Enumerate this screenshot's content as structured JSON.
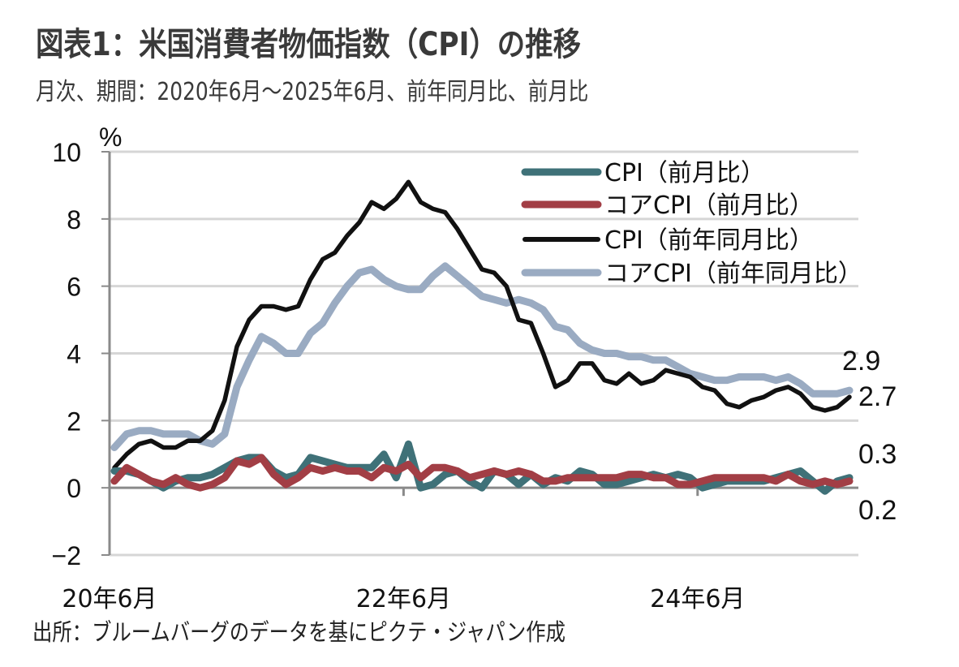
{
  "header": {
    "title": "図表1：米国消費者物価指数（CPI）の推移",
    "subtitle": "月次、期間：2020年6月～2025年6月、前年同月比、前月比"
  },
  "footer": {
    "source": "出所：ブルームバーグのデータを基にピクテ・ジャパン作成"
  },
  "chart_data": {
    "type": "line",
    "title": "図表1：米国消費者物価指数（CPI）の推移",
    "subtitle": "月次、期間：2020年6月～2025年6月、前年同月比、前月比",
    "xlabel": "",
    "ylabel": "%",
    "ylim": [
      -2,
      10
    ],
    "yticks": [
      -2,
      0,
      2,
      4,
      6,
      8,
      10
    ],
    "ytick_labels": [
      "−2",
      "0",
      "2",
      "4",
      "6",
      "8",
      "10"
    ],
    "xtick_labels": [
      {
        "index": 0,
        "label": "20年6月"
      },
      {
        "index": 24,
        "label": "22年6月"
      },
      {
        "index": 48,
        "label": "24年6月"
      }
    ],
    "x_start": "2020-06",
    "x_end": "2025-06",
    "frequency": "monthly",
    "grid": true,
    "legend": "top-right",
    "end_labels": [
      {
        "series": "コアCPI（前年同月比）",
        "label": "2.9"
      },
      {
        "series": "CPI（前年同月比）",
        "label": "2.7"
      },
      {
        "series": "CPI（前月比）",
        "label": "0.3"
      },
      {
        "series": "コアCPI（前月比）",
        "label": "0.2"
      }
    ],
    "series": [
      {
        "name": "CPI（前月比）",
        "color": "#3f7178",
        "values": [
          0.5,
          0.5,
          0.4,
          0.2,
          0.0,
          0.2,
          0.3,
          0.3,
          0.4,
          0.6,
          0.8,
          0.9,
          0.9,
          0.5,
          0.3,
          0.4,
          0.9,
          0.8,
          0.7,
          0.6,
          0.6,
          0.6,
          1.0,
          0.3,
          1.3,
          0.0,
          0.1,
          0.4,
          0.5,
          0.2,
          0.0,
          0.5,
          0.4,
          0.1,
          0.4,
          0.1,
          0.3,
          0.2,
          0.5,
          0.4,
          0.1,
          0.1,
          0.2,
          0.3,
          0.4,
          0.3,
          0.4,
          0.3,
          0.0,
          0.1,
          0.2,
          0.2,
          0.2,
          0.2,
          0.3,
          0.4,
          0.5,
          0.2,
          -0.1,
          0.2,
          0.3
        ]
      },
      {
        "name": "コアCPI（前月比）",
        "color": "#a23e45",
        "values": [
          0.2,
          0.6,
          0.4,
          0.2,
          0.1,
          0.3,
          0.1,
          0.0,
          0.1,
          0.3,
          0.8,
          0.7,
          0.9,
          0.4,
          0.1,
          0.3,
          0.6,
          0.5,
          0.6,
          0.5,
          0.5,
          0.3,
          0.6,
          0.5,
          0.7,
          0.3,
          0.6,
          0.6,
          0.5,
          0.3,
          0.4,
          0.5,
          0.4,
          0.5,
          0.4,
          0.2,
          0.2,
          0.3,
          0.3,
          0.3,
          0.3,
          0.3,
          0.4,
          0.4,
          0.3,
          0.3,
          0.1,
          0.1,
          0.2,
          0.3,
          0.3,
          0.3,
          0.3,
          0.3,
          0.2,
          0.4,
          0.2,
          0.1,
          0.2,
          0.1,
          0.2
        ]
      },
      {
        "name": "CPI（前年同月比）",
        "color": "#111111",
        "values": [
          0.6,
          1.0,
          1.3,
          1.4,
          1.2,
          1.2,
          1.4,
          1.4,
          1.7,
          2.6,
          4.2,
          5.0,
          5.4,
          5.4,
          5.3,
          5.4,
          6.2,
          6.8,
          7.0,
          7.5,
          7.9,
          8.5,
          8.3,
          8.6,
          9.1,
          8.5,
          8.3,
          8.2,
          7.7,
          7.1,
          6.5,
          6.4,
          6.0,
          5.0,
          4.9,
          4.0,
          3.0,
          3.2,
          3.7,
          3.7,
          3.2,
          3.1,
          3.4,
          3.1,
          3.2,
          3.5,
          3.4,
          3.3,
          3.0,
          2.9,
          2.5,
          2.4,
          2.6,
          2.7,
          2.9,
          3.0,
          2.8,
          2.4,
          2.3,
          2.4,
          2.7
        ]
      },
      {
        "name": "コアCPI（前年同月比）",
        "color": "#9aabc2",
        "values": [
          1.2,
          1.6,
          1.7,
          1.7,
          1.6,
          1.6,
          1.6,
          1.4,
          1.3,
          1.6,
          3.0,
          3.8,
          4.5,
          4.3,
          4.0,
          4.0,
          4.6,
          4.9,
          5.5,
          6.0,
          6.4,
          6.5,
          6.2,
          6.0,
          5.9,
          5.9,
          6.3,
          6.6,
          6.3,
          6.0,
          5.7,
          5.6,
          5.5,
          5.6,
          5.5,
          5.3,
          4.8,
          4.7,
          4.3,
          4.1,
          4.0,
          4.0,
          3.9,
          3.9,
          3.8,
          3.8,
          3.6,
          3.4,
          3.3,
          3.2,
          3.2,
          3.3,
          3.3,
          3.3,
          3.2,
          3.3,
          3.1,
          2.8,
          2.8,
          2.8,
          2.9
        ]
      }
    ]
  }
}
